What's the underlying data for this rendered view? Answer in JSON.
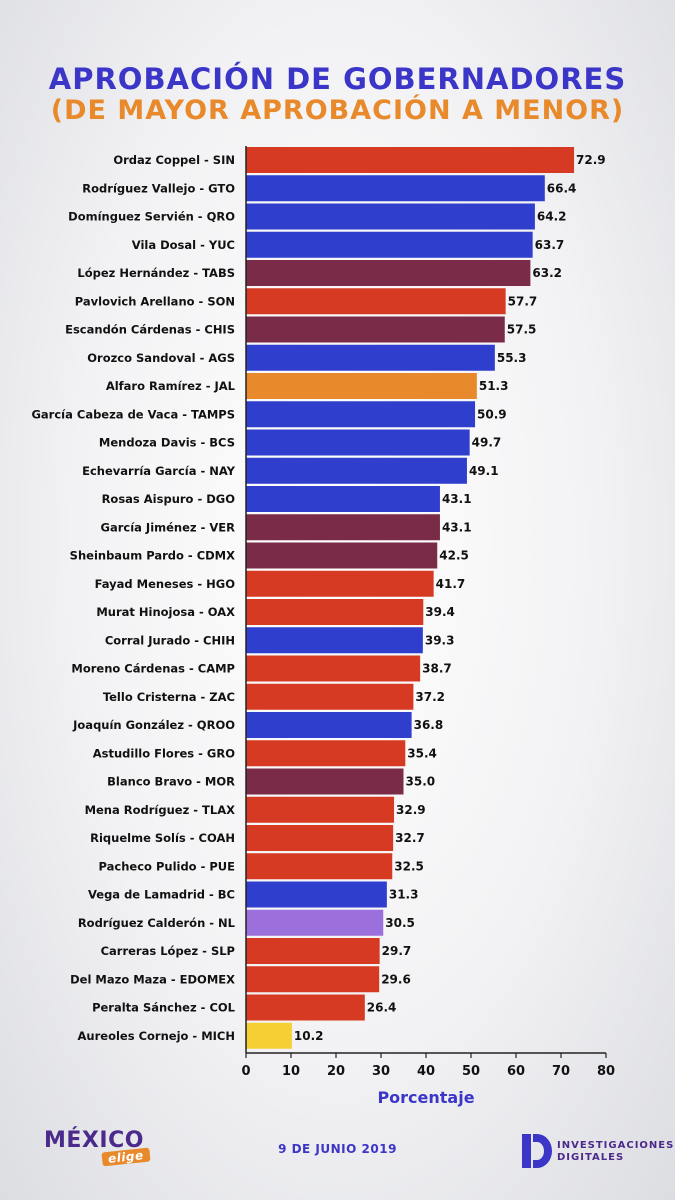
{
  "header": {
    "title": "APROBACIÓN DE GOBERNADORES",
    "subtitle": "(DE MAYOR APROBACIÓN A MENOR)"
  },
  "footer": {
    "logo_main": "MÉXICO",
    "logo_sub": "elige",
    "date": "9 DE JUNIO 2019",
    "brand_line1": "INVESTIGACIONES",
    "brand_line2": "DIGITALES",
    "brand_initial": "D"
  },
  "colors": {
    "red": "#d63a22",
    "blue": "#2f3ecc",
    "maroon": "#7a2b48",
    "orange": "#e8892c",
    "lilac": "#9b6fdc",
    "yellow": "#f4d035",
    "title": "#3b35c8",
    "subtitle": "#e8892c"
  },
  "chart_data": {
    "type": "bar",
    "orientation": "horizontal",
    "xlabel": "Porcentaje",
    "xlim": [
      0,
      80
    ],
    "xticks": [
      0,
      10,
      20,
      30,
      40,
      50,
      60,
      70,
      80
    ],
    "grid": false,
    "categories": [
      "Ordaz Coppel - SIN",
      "Rodríguez Vallejo - GTO",
      "Domínguez Servién - QRO",
      "Vila Dosal - YUC",
      "López Hernández - TABS",
      "Pavlovich Arellano - SON",
      "Escandón Cárdenas - CHIS",
      "Orozco Sandoval - AGS",
      "Alfaro Ramírez - JAL",
      "García Cabeza de Vaca - TAMPS",
      "Mendoza Davis - BCS",
      "Echevarría García - NAY",
      "Rosas Aispuro - DGO",
      "García Jiménez - VER",
      "Sheinbaum Pardo - CDMX",
      "Fayad Meneses - HGO",
      "Murat Hinojosa - OAX",
      "Corral Jurado - CHIH",
      "Moreno Cárdenas - CAMP",
      "Tello Cristerna - ZAC",
      "Joaquín González - QROO",
      "Astudillo Flores - GRO",
      "Blanco Bravo - MOR",
      "Mena Rodríguez - TLAX",
      "Riquelme Solís - COAH",
      "Pacheco Pulido - PUE",
      "Vega de Lamadrid - BC",
      "Rodríguez Calderón - NL",
      "Carreras López - SLP",
      "Del Mazo Maza - EDOMEX",
      "Peralta Sánchez - COL",
      "Aureoles Cornejo - MICH"
    ],
    "values": [
      72.9,
      66.4,
      64.2,
      63.7,
      63.2,
      57.7,
      57.5,
      55.3,
      51.3,
      50.9,
      49.7,
      49.1,
      43.1,
      43.1,
      42.5,
      41.7,
      39.4,
      39.3,
      38.7,
      37.2,
      36.8,
      35.4,
      35.0,
      32.9,
      32.7,
      32.5,
      31.3,
      30.5,
      29.7,
      29.6,
      26.4,
      10.2
    ],
    "value_labels": [
      "72.9",
      "66.4",
      "64.2",
      "63.7",
      "63.2",
      "57.7",
      "57.5",
      "55.3",
      "51.3",
      "50.9",
      "49.7",
      "49.1",
      "43.1",
      "43.1",
      "42.5",
      "41.7",
      "39.4",
      "39.3",
      "38.7",
      "37.2",
      "36.8",
      "35.4",
      "35.0",
      "32.9",
      "32.7",
      "32.5",
      "31.3",
      "30.5",
      "29.7",
      "29.6",
      "26.4",
      "10.2"
    ],
    "bar_colors": [
      "red",
      "blue",
      "blue",
      "blue",
      "maroon",
      "red",
      "maroon",
      "blue",
      "orange",
      "blue",
      "blue",
      "blue",
      "blue",
      "maroon",
      "maroon",
      "red",
      "red",
      "blue",
      "red",
      "red",
      "blue",
      "red",
      "maroon",
      "red",
      "red",
      "red",
      "blue",
      "lilac",
      "red",
      "red",
      "red",
      "yellow"
    ]
  }
}
